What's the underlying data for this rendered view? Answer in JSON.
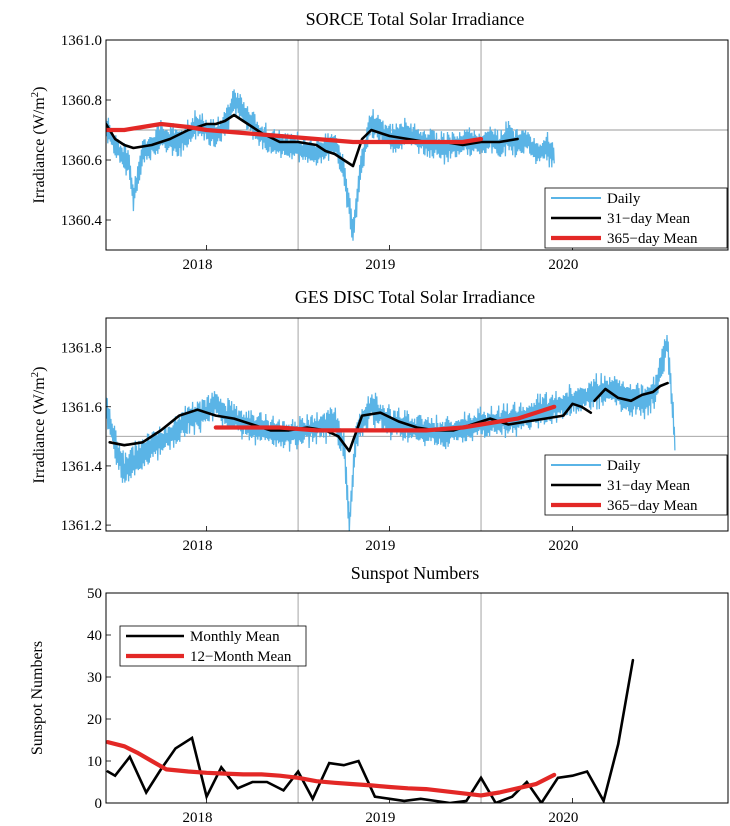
{
  "chart_data": [
    {
      "type": "line",
      "title": "SORCE Total Solar Irradiance",
      "ylabel": "Irradiance (W/m",
      "ylabel_sup": "2",
      "ylabel_end": ")",
      "xlabel": "",
      "xlim": [
        2017.45,
        2020.85
      ],
      "ylim": [
        1360.3,
        1361.0
      ],
      "yticks": [
        1360.4,
        1360.6,
        1360.8,
        1361.0
      ],
      "ytick_labels": [
        "1360.4",
        "1360.6",
        "1360.8",
        "1361.0"
      ],
      "xticks": [
        2018,
        2019,
        2020
      ],
      "xtick_label_positions": [
        2017.95,
        2018.95,
        2019.95
      ],
      "xtick_labels": [
        "2018",
        "2019",
        "2020"
      ],
      "xgrid": [
        2018.5,
        2019.5
      ],
      "reference_y": 1360.7,
      "grid": "partial",
      "legend_position": "bottom-right",
      "series": [
        {
          "name": "Daily",
          "color": "#5ab4e6",
          "style": "daily",
          "x": [
            2017.45,
            2017.52,
            2017.58,
            2017.6,
            2017.65,
            2017.75,
            2017.85,
            2017.95,
            2018.05,
            2018.1,
            2018.15,
            2018.2,
            2018.3,
            2018.4,
            2018.5,
            2018.6,
            2018.7,
            2018.75,
            2018.8,
            2018.85,
            2018.9,
            2019.0,
            2019.1,
            2019.2,
            2019.3,
            2019.4,
            2019.5,
            2019.55,
            2019.6,
            2019.65,
            2019.7,
            2019.75,
            2019.8,
            2019.85,
            2019.9
          ],
          "y": [
            1360.71,
            1360.63,
            1360.58,
            1360.47,
            1360.62,
            1360.68,
            1360.66,
            1360.72,
            1360.68,
            1360.72,
            1360.8,
            1360.76,
            1360.68,
            1360.65,
            1360.64,
            1360.62,
            1360.66,
            1360.56,
            1360.36,
            1360.6,
            1360.73,
            1360.67,
            1360.69,
            1360.66,
            1360.64,
            1360.66,
            1360.65,
            1360.68,
            1360.65,
            1360.68,
            1360.65,
            1360.67,
            1360.62,
            1360.64,
            1360.62
          ],
          "amp": 0.045,
          "jitter": 0.35
        },
        {
          "name": "31-day Mean",
          "color": "#000000",
          "style": "thick",
          "x": [
            2017.45,
            2017.5,
            2017.55,
            2017.6,
            2017.7,
            2017.8,
            2017.9,
            2018.0,
            2018.05,
            2018.1,
            2018.15,
            2018.2,
            2018.3,
            2018.4,
            2018.5,
            2018.6,
            2018.65,
            2018.7,
            2018.75,
            2018.8,
            2018.85,
            2018.9,
            2018.95,
            2019.0,
            2019.1,
            2019.2,
            2019.3,
            2019.4,
            2019.5,
            2019.6,
            2019.7
          ],
          "y": [
            1360.72,
            1360.67,
            1360.65,
            1360.64,
            1360.65,
            1360.67,
            1360.7,
            1360.72,
            1360.72,
            1360.73,
            1360.75,
            1360.73,
            1360.69,
            1360.66,
            1360.66,
            1360.65,
            1360.63,
            1360.62,
            1360.6,
            1360.58,
            1360.67,
            1360.7,
            1360.69,
            1360.68,
            1360.67,
            1360.66,
            1360.66,
            1360.65,
            1360.66,
            1360.66,
            1360.67
          ]
        },
        {
          "name": "365-day Mean",
          "color": "#e32826",
          "style": "thicker",
          "x": [
            2017.45,
            2017.55,
            2017.65,
            2017.75,
            2017.9,
            2018.0,
            2018.2,
            2018.4,
            2018.6,
            2018.8,
            2019.0,
            2019.2,
            2019.4,
            2019.5
          ],
          "y": [
            1360.7,
            1360.7,
            1360.71,
            1360.72,
            1360.71,
            1360.7,
            1360.69,
            1360.68,
            1360.67,
            1360.66,
            1360.66,
            1360.66,
            1360.66,
            1360.67
          ]
        }
      ]
    },
    {
      "type": "line",
      "title": "GES DISC Total Solar Irradiance",
      "ylabel": "Irradiance (W/m",
      "ylabel_sup": "2",
      "ylabel_end": ")",
      "xlabel": "",
      "xlim": [
        2017.45,
        2020.85
      ],
      "ylim": [
        1361.18,
        1361.9
      ],
      "yticks": [
        1361.2,
        1361.4,
        1361.6,
        1361.8
      ],
      "ytick_labels": [
        "1361.2",
        "1361.4",
        "1361.6",
        "1361.8"
      ],
      "xticks": [
        2018,
        2019,
        2020
      ],
      "xtick_label_positions": [
        2017.95,
        2018.95,
        2019.95
      ],
      "xtick_labels": [
        "2018",
        "2019",
        "2020"
      ],
      "xgrid": [
        2018.5,
        2019.5
      ],
      "reference_y": 1361.5,
      "grid": "partial",
      "legend_position": "bottom-right",
      "series": [
        {
          "name": "Daily",
          "color": "#5ab4e6",
          "style": "daily",
          "x": [
            2017.45,
            2017.5,
            2017.55,
            2017.6,
            2017.7,
            2017.8,
            2017.9,
            2018.0,
            2018.05,
            2018.1,
            2018.2,
            2018.3,
            2018.4,
            2018.5,
            2018.6,
            2018.7,
            2018.75,
            2018.78,
            2018.82,
            2018.9,
            2019.0,
            2019.1,
            2019.2,
            2019.3,
            2019.4,
            2019.5,
            2019.6,
            2019.7,
            2019.8,
            2019.9,
            2020.0,
            2020.1,
            2020.2,
            2020.3,
            2020.4,
            2020.45,
            2020.52,
            2020.56
          ],
          "y": [
            1361.6,
            1361.47,
            1361.39,
            1361.42,
            1361.47,
            1361.5,
            1361.56,
            1361.58,
            1361.62,
            1361.57,
            1361.55,
            1361.52,
            1361.51,
            1361.51,
            1361.53,
            1361.55,
            1361.47,
            1361.2,
            1361.52,
            1361.6,
            1361.55,
            1361.53,
            1361.52,
            1361.51,
            1361.53,
            1361.54,
            1361.55,
            1361.56,
            1361.58,
            1361.6,
            1361.62,
            1361.64,
            1361.66,
            1361.63,
            1361.62,
            1361.65,
            1361.82,
            1361.48
          ],
          "amp": 0.05,
          "jitter": 0.35
        },
        {
          "name": "31-day Mean",
          "color": "#000000",
          "style": "thick",
          "x": [
            2017.47,
            2017.55,
            2017.65,
            2017.75,
            2017.85,
            2017.95,
            2018.05,
            2018.15,
            2018.25,
            2018.35,
            2018.45,
            2018.55,
            2018.65,
            2018.72,
            2018.78,
            2018.85,
            2018.95,
            2019.05,
            2019.15,
            2019.25,
            2019.35,
            2019.45,
            2019.55,
            2019.65,
            2019.75,
            2019.85,
            2019.95,
            2020.0,
            2020.05,
            2020.1,
            null,
            2020.12,
            2020.18,
            2020.25,
            2020.32,
            2020.38,
            2020.44,
            2020.48,
            2020.52
          ],
          "y": [
            1361.48,
            1361.47,
            1361.48,
            1361.52,
            1361.57,
            1361.59,
            1361.57,
            1361.56,
            1361.54,
            1361.52,
            1361.52,
            1361.53,
            1361.52,
            1361.5,
            1361.45,
            1361.57,
            1361.58,
            1361.55,
            1361.53,
            1361.52,
            1361.52,
            1361.54,
            1361.56,
            1361.54,
            1361.55,
            1361.56,
            1361.57,
            1361.61,
            1361.6,
            1361.58,
            null,
            1361.62,
            1361.66,
            1361.63,
            1361.62,
            1361.64,
            1361.65,
            1361.67,
            1361.68
          ]
        },
        {
          "name": "365-day Mean",
          "color": "#e32826",
          "style": "thicker",
          "x": [
            2018.05,
            2018.2,
            2018.4,
            2018.6,
            2018.8,
            2019.0,
            2019.2,
            2019.4,
            2019.5,
            2019.6,
            2019.7,
            2019.8,
            2019.9
          ],
          "y": [
            1361.53,
            1361.53,
            1361.53,
            1361.52,
            1361.52,
            1361.52,
            1361.52,
            1361.53,
            1361.54,
            1361.55,
            1361.56,
            1361.58,
            1361.6
          ]
        }
      ]
    },
    {
      "type": "line",
      "title": "Sunspot Numbers",
      "ylabel": "Sunspot Numbers",
      "xlabel": "",
      "xlim": [
        2017.45,
        2020.85
      ],
      "ylim": [
        0,
        50
      ],
      "yticks": [
        0,
        10,
        20,
        30,
        40,
        50
      ],
      "ytick_labels": [
        "0",
        "10",
        "20",
        "30",
        "40",
        "50"
      ],
      "xticks": [
        2018,
        2019,
        2020
      ],
      "xtick_label_positions": [
        2017.95,
        2018.95,
        2019.95
      ],
      "xtick_labels": [
        "2018",
        "2019",
        "2020"
      ],
      "xgrid": [
        2018.5,
        2019.5
      ],
      "grid": "partial",
      "legend_position": "top-left",
      "series": [
        {
          "name": "Monthly Mean",
          "color": "#000000",
          "style": "monthly",
          "x": [
            2017.46,
            2017.5,
            2017.58,
            2017.67,
            2017.75,
            2017.83,
            2017.92,
            2018.0,
            2018.08,
            2018.17,
            2018.25,
            2018.33,
            2018.42,
            2018.5,
            2018.58,
            2018.67,
            2018.75,
            2018.83,
            2018.92,
            2019.0,
            2019.08,
            2019.17,
            2019.25,
            2019.33,
            2019.42,
            2019.5,
            2019.58,
            2019.67,
            2019.75,
            2019.83,
            2019.92,
            2020.0,
            2020.08,
            2020.17,
            2020.25,
            2020.33,
            2020.42
          ],
          "y": [
            7.5,
            6.5,
            11,
            2.5,
            8,
            13,
            15.5,
            1.5,
            8.5,
            3.5,
            5,
            5,
            3,
            7.5,
            1,
            9.5,
            9,
            10,
            1.5,
            1,
            0.5,
            1,
            0.5,
            0,
            0.5,
            6,
            0,
            1.5,
            5,
            0,
            6,
            6.5,
            7.5,
            0.5,
            14,
            34,
            null
          ]
        },
        {
          "name": "12-Month Mean",
          "color": "#e32826",
          "style": "thicker",
          "x": [
            2017.46,
            2017.55,
            2017.62,
            2017.7,
            2017.78,
            2017.9,
            2018.0,
            2018.1,
            2018.2,
            2018.3,
            2018.4,
            2018.5,
            2018.6,
            2018.7,
            2018.8,
            2018.9,
            2019.0,
            2019.1,
            2019.2,
            2019.3,
            2019.4,
            2019.5,
            2019.6,
            2019.7,
            2019.8,
            2019.9
          ],
          "y": [
            14.5,
            13.5,
            12,
            10,
            8,
            7.5,
            7.2,
            7,
            6.8,
            6.8,
            6.5,
            6,
            5.2,
            4.8,
            4.5,
            4.2,
            3.8,
            3.5,
            3.3,
            2.8,
            2.3,
            1.8,
            2.5,
            3.5,
            4.5,
            6.7
          ]
        }
      ]
    }
  ]
}
